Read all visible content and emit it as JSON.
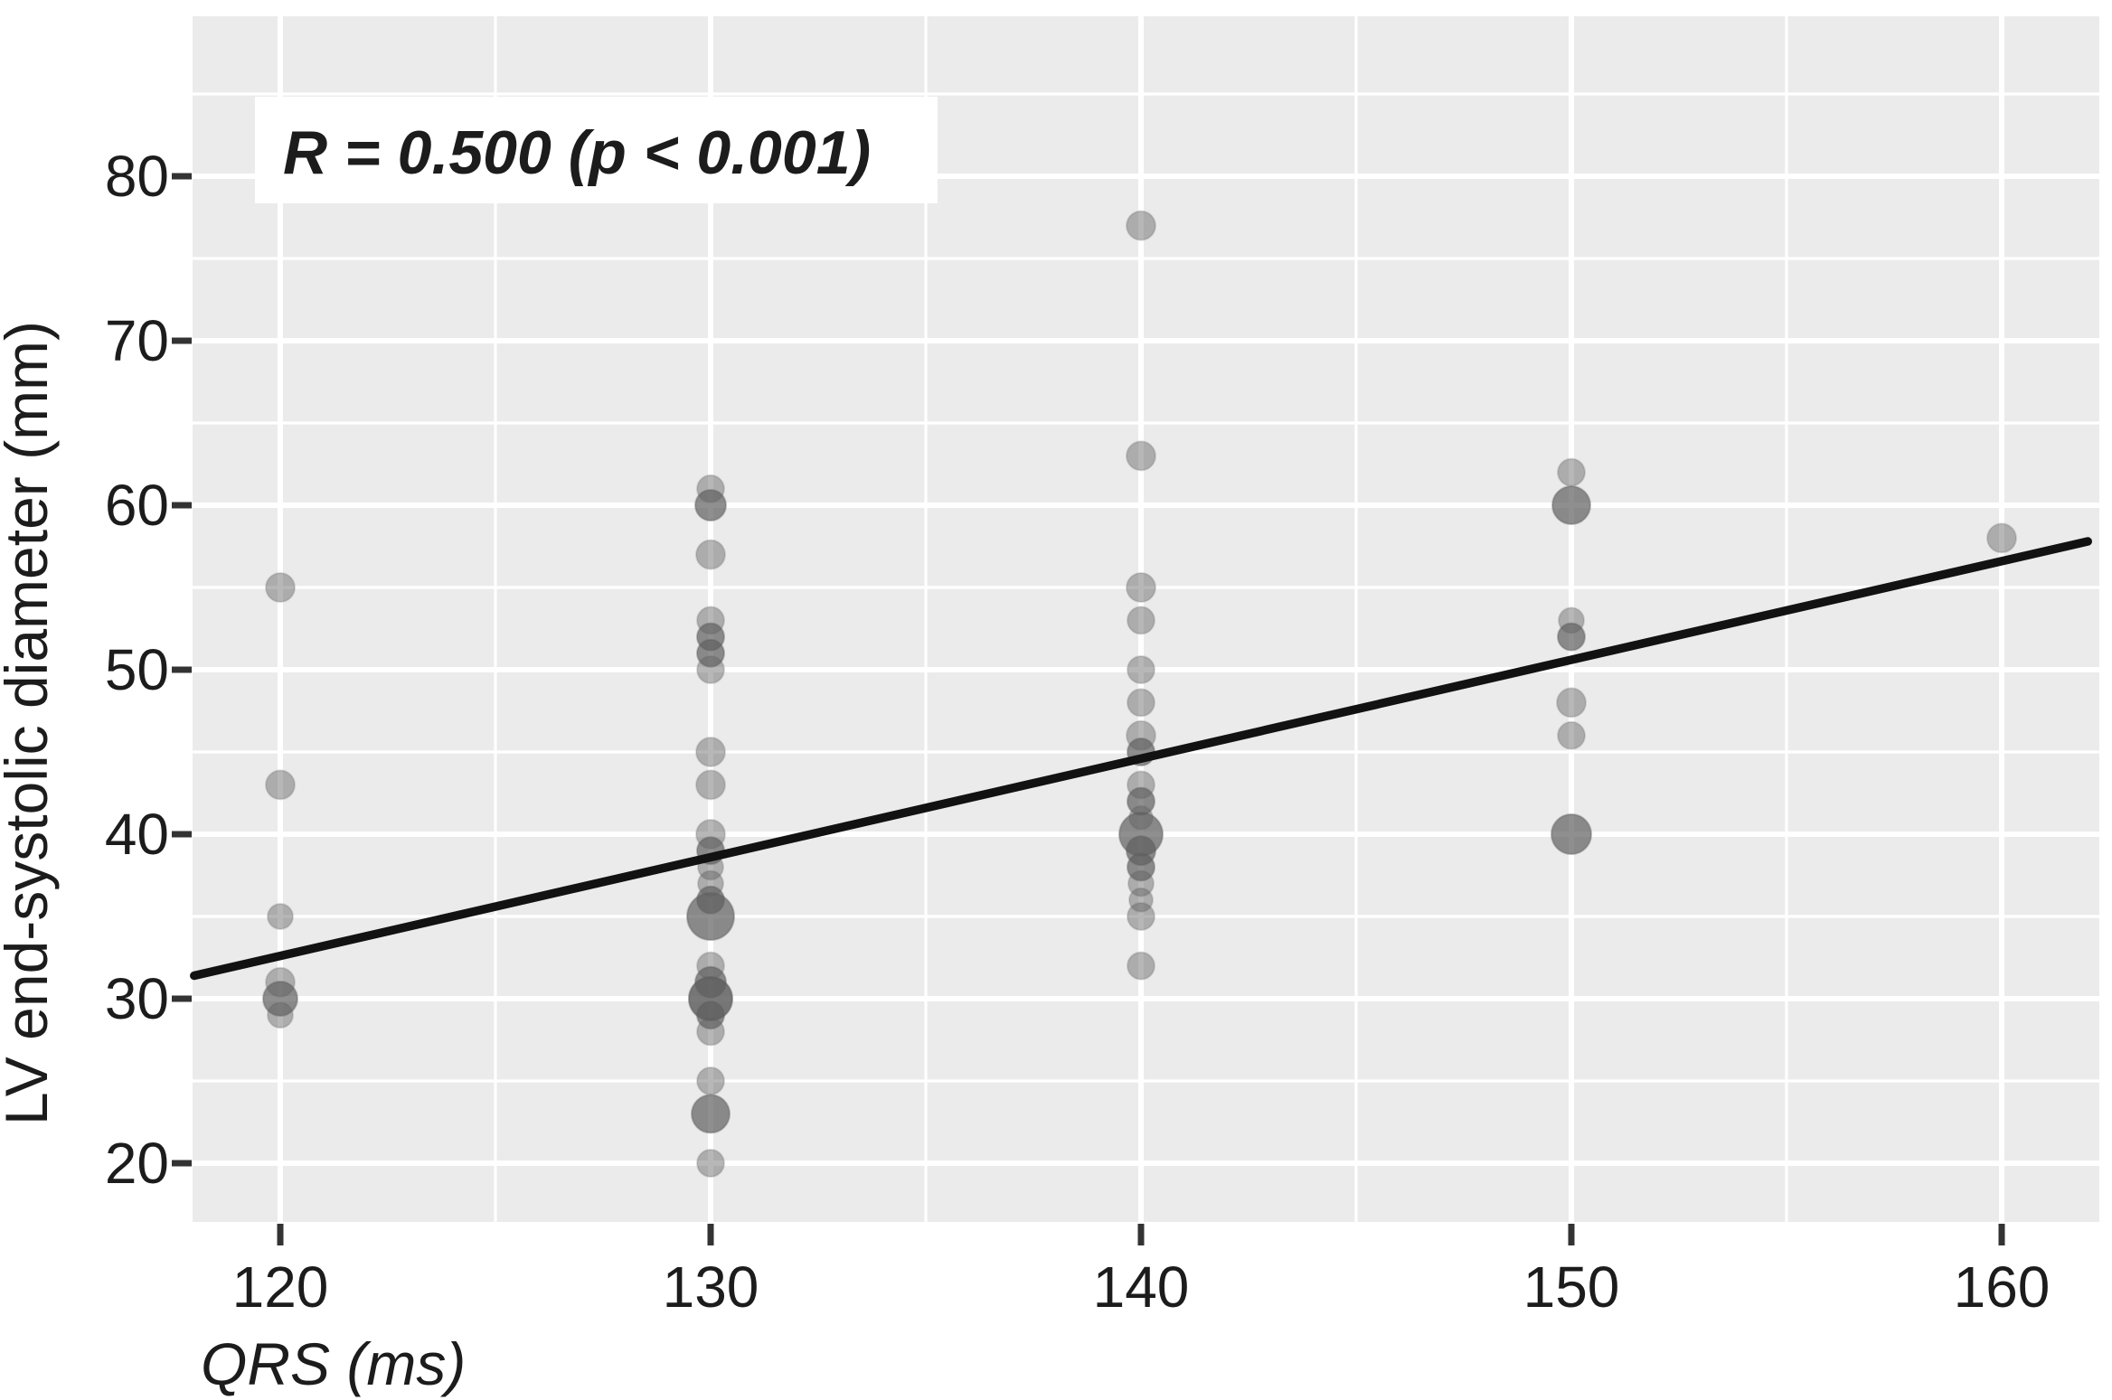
{
  "figure": {
    "annotation": "R = 0.500 (p < 0.001)",
    "x_axis_label": "QRS (ms)",
    "y_axis_label": "LV end-systolic diameter (mm)"
  },
  "colors": {
    "background": "#ffffff",
    "panel": "#ebebeb",
    "gridline": "#ffffff",
    "tick": "#333333",
    "text": "#1c1c1c",
    "point": "#5f5f5f",
    "regression_line": "#121212",
    "annotation_box": "#ffffff"
  },
  "chart_data": {
    "type": "scatter",
    "title": "R = 0.500 (p < 0.001)",
    "xlabel": "QRS (ms)",
    "ylabel": "LV end-systolic diameter (mm)",
    "xlim": [
      117.9,
      162.3
    ],
    "ylim": [
      16.4,
      89.7
    ],
    "x_ticks": [
      120,
      130,
      140,
      150,
      160
    ],
    "y_ticks": [
      20,
      30,
      40,
      50,
      60,
      70,
      80
    ],
    "x_minor_ticks": [
      125,
      135,
      145,
      155
    ],
    "y_minor_ticks": [
      25,
      35,
      45,
      55,
      65,
      75,
      85
    ],
    "grid": "white major and minor gridlines on light gray panel (ggplot style)",
    "legend": "none",
    "regression_line": {
      "x1": 118.0,
      "y1": 31.4,
      "x2": 162.0,
      "y2": 57.8,
      "slope_mm_per_ms": 0.6
    },
    "points": [
      {
        "qrs": 120,
        "dia": 55,
        "r": 16,
        "n": 1
      },
      {
        "qrs": 120,
        "dia": 43,
        "r": 16,
        "n": 1
      },
      {
        "qrs": 120,
        "dia": 35,
        "r": 14,
        "n": 1
      },
      {
        "qrs": 120,
        "dia": 31,
        "r": 16,
        "n": 1
      },
      {
        "qrs": 120,
        "dia": 30,
        "r": 19,
        "n": 2
      },
      {
        "qrs": 120,
        "dia": 29,
        "r": 14,
        "n": 1
      },
      {
        "qrs": 130,
        "dia": 61,
        "r": 15,
        "n": 1
      },
      {
        "qrs": 130,
        "dia": 60,
        "r": 17,
        "n": 2
      },
      {
        "qrs": 130,
        "dia": 57,
        "r": 16,
        "n": 1
      },
      {
        "qrs": 130,
        "dia": 53,
        "r": 15,
        "n": 1
      },
      {
        "qrs": 130,
        "dia": 52,
        "r": 15,
        "n": 2
      },
      {
        "qrs": 130,
        "dia": 51,
        "r": 15,
        "n": 2
      },
      {
        "qrs": 130,
        "dia": 50,
        "r": 15,
        "n": 1
      },
      {
        "qrs": 130,
        "dia": 45,
        "r": 16,
        "n": 1
      },
      {
        "qrs": 130,
        "dia": 43,
        "r": 16,
        "n": 1
      },
      {
        "qrs": 130,
        "dia": 40,
        "r": 16,
        "n": 1
      },
      {
        "qrs": 130,
        "dia": 39,
        "r": 15,
        "n": 2
      },
      {
        "qrs": 130,
        "dia": 38,
        "r": 14,
        "n": 1
      },
      {
        "qrs": 130,
        "dia": 37,
        "r": 14,
        "n": 1
      },
      {
        "qrs": 130,
        "dia": 36,
        "r": 15,
        "n": 2
      },
      {
        "qrs": 130,
        "dia": 35,
        "r": 26,
        "n": 2
      },
      {
        "qrs": 130,
        "dia": 32,
        "r": 15,
        "n": 1
      },
      {
        "qrs": 130,
        "dia": 31,
        "r": 17,
        "n": 2
      },
      {
        "qrs": 130,
        "dia": 30,
        "r": 24,
        "n": 3
      },
      {
        "qrs": 130,
        "dia": 29,
        "r": 15,
        "n": 2
      },
      {
        "qrs": 130,
        "dia": 28,
        "r": 15,
        "n": 1
      },
      {
        "qrs": 130,
        "dia": 25,
        "r": 15,
        "n": 1
      },
      {
        "qrs": 130,
        "dia": 23,
        "r": 21,
        "n": 2
      },
      {
        "qrs": 130,
        "dia": 20,
        "r": 15,
        "n": 1
      },
      {
        "qrs": 140,
        "dia": 77,
        "r": 16,
        "n": 1
      },
      {
        "qrs": 140,
        "dia": 63,
        "r": 16,
        "n": 1
      },
      {
        "qrs": 140,
        "dia": 55,
        "r": 16,
        "n": 1
      },
      {
        "qrs": 140,
        "dia": 53,
        "r": 15,
        "n": 1
      },
      {
        "qrs": 140,
        "dia": 50,
        "r": 15,
        "n": 1
      },
      {
        "qrs": 140,
        "dia": 48,
        "r": 15,
        "n": 1
      },
      {
        "qrs": 140,
        "dia": 46,
        "r": 16,
        "n": 1
      },
      {
        "qrs": 140,
        "dia": 45,
        "r": 15,
        "n": 2
      },
      {
        "qrs": 140,
        "dia": 43,
        "r": 15,
        "n": 1
      },
      {
        "qrs": 140,
        "dia": 42,
        "r": 15,
        "n": 2
      },
      {
        "qrs": 140,
        "dia": 41,
        "r": 13,
        "n": 1
      },
      {
        "qrs": 140,
        "dia": 40,
        "r": 24,
        "n": 2
      },
      {
        "qrs": 140,
        "dia": 39,
        "r": 16,
        "n": 2
      },
      {
        "qrs": 140,
        "dia": 38,
        "r": 15,
        "n": 2
      },
      {
        "qrs": 140,
        "dia": 37,
        "r": 14,
        "n": 1
      },
      {
        "qrs": 140,
        "dia": 36,
        "r": 13,
        "n": 1
      },
      {
        "qrs": 140,
        "dia": 35,
        "r": 15,
        "n": 1
      },
      {
        "qrs": 140,
        "dia": 32,
        "r": 15,
        "n": 1
      },
      {
        "qrs": 150,
        "dia": 62,
        "r": 15,
        "n": 1
      },
      {
        "qrs": 150,
        "dia": 60,
        "r": 21,
        "n": 2
      },
      {
        "qrs": 150,
        "dia": 53,
        "r": 14,
        "n": 1
      },
      {
        "qrs": 150,
        "dia": 52,
        "r": 15,
        "n": 2
      },
      {
        "qrs": 150,
        "dia": 48,
        "r": 16,
        "n": 1
      },
      {
        "qrs": 150,
        "dia": 46,
        "r": 15,
        "n": 1
      },
      {
        "qrs": 150,
        "dia": 40,
        "r": 22,
        "n": 2
      },
      {
        "qrs": 160,
        "dia": 58,
        "r": 16,
        "n": 1
      }
    ]
  }
}
